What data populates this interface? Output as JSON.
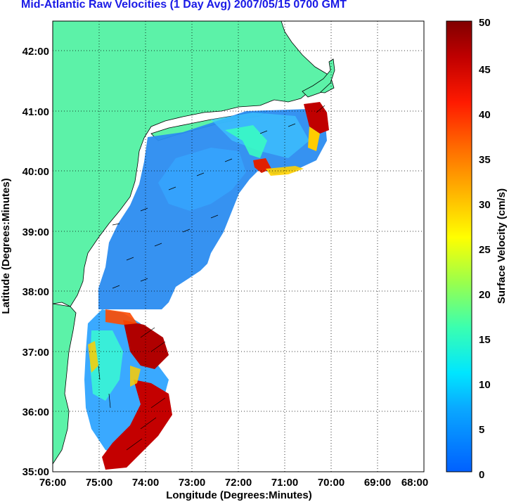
{
  "title": "Mid-Atlantic Raw Velocities (1 Day Avg) 2007/05/15 0700 GMT",
  "map": {
    "xlabel": "Longitude (Degrees:Minutes)",
    "ylabel": "Latitude (Degrees:Minutes)",
    "x_ticks": [
      "76:00",
      "75:00",
      "74:00",
      "73:00",
      "72:00",
      "71:00",
      "70:00",
      "69:00",
      "68:00"
    ],
    "y_ticks": [
      "42:00",
      "41:00",
      "40:00",
      "39:00",
      "38:00",
      "37:00",
      "36:00",
      "35:00"
    ],
    "lon_range": [
      -76,
      -68
    ],
    "lat_range": [
      35,
      42.5
    ],
    "grid": true,
    "land_color": "#5cf2a8",
    "water_color": "#ffffff"
  },
  "colorbar": {
    "label": "Surface Velocity (cm/s)",
    "ticks": [
      "0",
      "5",
      "10",
      "15",
      "20",
      "25",
      "30",
      "35",
      "40",
      "45",
      "50"
    ],
    "range": [
      0,
      50
    ]
  }
}
